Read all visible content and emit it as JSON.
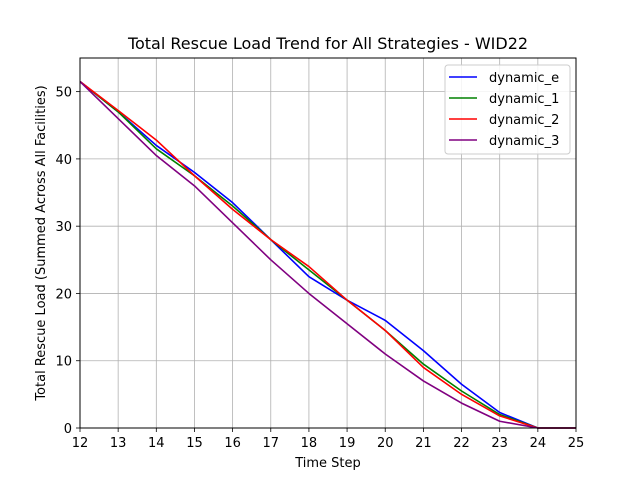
{
  "chart_data": {
    "type": "line",
    "title": "Total Rescue Load Trend for All Strategies - WID22",
    "xlabel": "Time Step",
    "ylabel": "Total Rescue Load (Summed Across All Facilities)",
    "xlim": [
      12,
      25
    ],
    "ylim": [
      0,
      55
    ],
    "xticks": [
      "12",
      "13",
      "14",
      "15",
      "16",
      "17",
      "18",
      "19",
      "20",
      "21",
      "22",
      "23",
      "24",
      "25"
    ],
    "yticks": [
      "0",
      "10",
      "20",
      "30",
      "40",
      "50"
    ],
    "grid": true,
    "legend_position": "top-right",
    "x": [
      12,
      13,
      14,
      15,
      16,
      17,
      18,
      19,
      20,
      21,
      22,
      23,
      24,
      25
    ],
    "series": [
      {
        "name": "dynamic_e",
        "color": "#0000ff",
        "values": [
          51.5,
          47.0,
          42.0,
          38.0,
          33.5,
          28.0,
          22.5,
          19.0,
          16.0,
          11.5,
          6.5,
          2.3,
          0.0,
          0.0
        ]
      },
      {
        "name": "dynamic_1",
        "color": "#008000",
        "values": [
          51.5,
          47.0,
          41.5,
          37.5,
          33.0,
          28.0,
          23.5,
          19.0,
          14.5,
          9.5,
          5.5,
          2.0,
          0.0,
          0.0
        ]
      },
      {
        "name": "dynamic_2",
        "color": "#ff0000",
        "values": [
          51.5,
          47.2,
          42.8,
          37.5,
          32.5,
          28.0,
          24.0,
          19.0,
          14.5,
          9.0,
          5.0,
          1.8,
          0.0,
          0.0
        ]
      },
      {
        "name": "dynamic_3",
        "color": "#800080",
        "values": [
          51.5,
          46.0,
          40.5,
          36.0,
          30.5,
          25.0,
          20.0,
          15.5,
          11.0,
          7.0,
          3.7,
          1.0,
          0.0,
          0.0
        ]
      }
    ]
  }
}
